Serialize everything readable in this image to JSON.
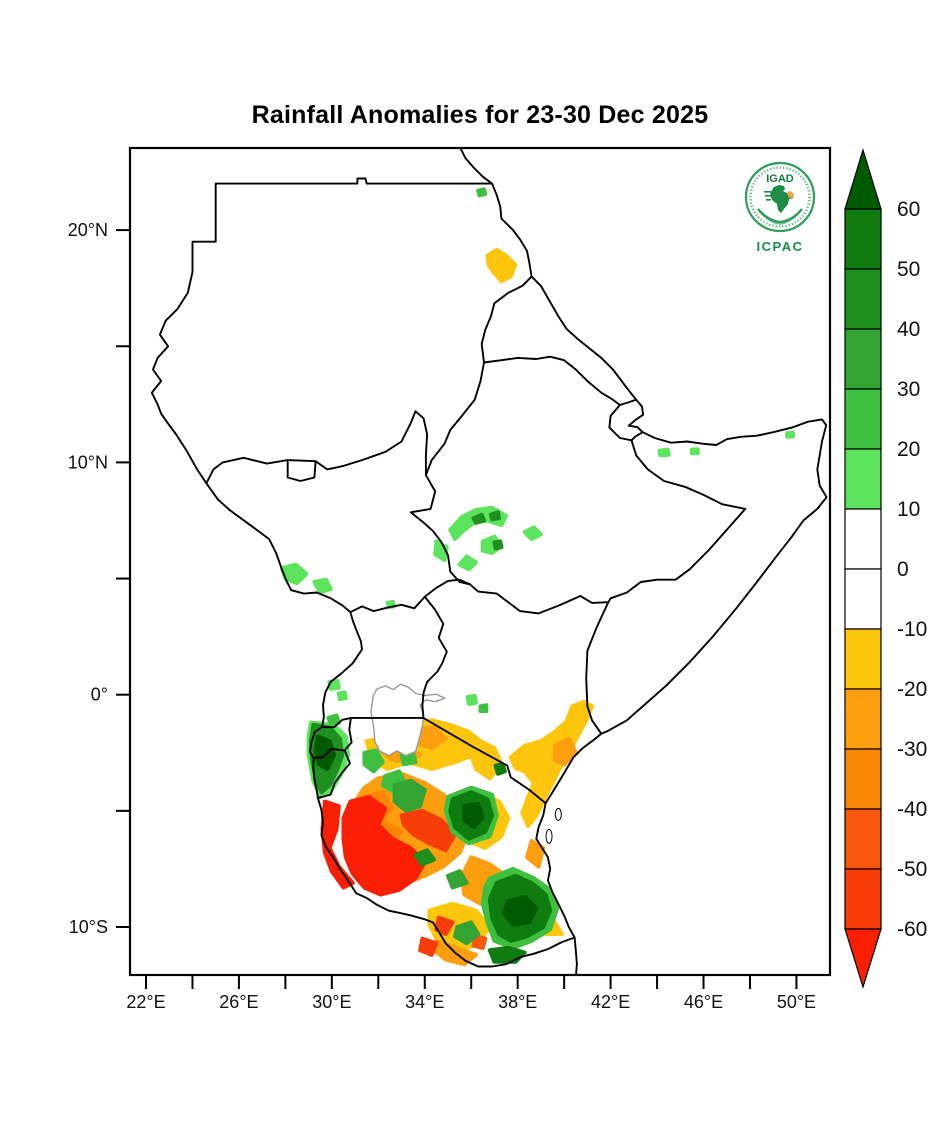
{
  "title": "Rainfall Anomalies for 23-30 Dec 2025",
  "axes": {
    "y_axis": {
      "labels": [
        {
          "text": "20°N",
          "value": 20
        },
        {
          "text": "10°N",
          "value": 10
        },
        {
          "text": "0°",
          "value": 0
        },
        {
          "text": "10°S",
          "value": -10
        }
      ],
      "minor_ticks": [
        15,
        5,
        -5
      ]
    },
    "x_axis": {
      "labels": [
        {
          "text": "22°E",
          "value": 22
        },
        {
          "text": "26°E",
          "value": 26
        },
        {
          "text": "30°E",
          "value": 30
        },
        {
          "text": "34°E",
          "value": 34
        },
        {
          "text": "38°E",
          "value": 38
        },
        {
          "text": "42°E",
          "value": 42
        },
        {
          "text": "46°E",
          "value": 46
        },
        {
          "text": "50°E",
          "value": 50
        }
      ],
      "minor_ticks": [
        24,
        28,
        32,
        36,
        40,
        44,
        48
      ]
    }
  },
  "palette": {
    "green_60": "#005A00",
    "green_50": "#0E7C0E",
    "green_40": "#1F8F1F",
    "green_30": "#33A433",
    "green_20": "#3FBF3F",
    "green_10": "#5CE55C",
    "white": "#FFFFFF",
    "gold": "#FDC50C",
    "orange_20": "#FD9E0E",
    "orange_30": "#FB8505",
    "orange_40": "#F8560A",
    "red_50": "#F63D08",
    "red_60": "#FA1E02"
  },
  "colorbar": {
    "tick_labels": [
      "60",
      "50",
      "40",
      "30",
      "20",
      "10",
      "0",
      "-10",
      "-20",
      "-30",
      "-40",
      "-50",
      "-60"
    ],
    "top_arrow_color_key": "green_60",
    "bottom_arrow_color_key": "red_60",
    "segment_color_keys": [
      "green_50",
      "green_40",
      "green_30",
      "green_20",
      "green_10",
      "white",
      "white",
      "gold",
      "orange_20",
      "orange_30",
      "orange_40",
      "red_50"
    ]
  },
  "logo": {
    "igad_label": "IGAD",
    "icpac_label": "ICPAC",
    "green": "#13914a",
    "orange": "#F2A93B"
  },
  "chart_data": {
    "type": "heatmap",
    "title": "Rainfall Anomalies for 23-30 Dec 2025",
    "colorbar_values": [
      60,
      50,
      40,
      30,
      20,
      10,
      0,
      -10,
      -20,
      -30,
      -40,
      -50,
      -60
    ],
    "x_ticks": [
      "22°E",
      "26°E",
      "30°E",
      "34°E",
      "38°E",
      "42°E",
      "46°E",
      "50°E"
    ],
    "y_ticks": [
      "20°N",
      "10°N",
      "0°",
      "10°S"
    ],
    "legend_position": "right",
    "regions_depicted": [
      {
        "area": "southwestern and central Tanzania",
        "anomaly": "-40 to below -60"
      },
      {
        "area": "northern Tanzania and Kenyan coast strip",
        "anomaly": "-10 to -30"
      },
      {
        "area": "Rwanda, Burundi and southeastern Tanzania",
        "anomaly": "+20 to above +50"
      },
      {
        "area": "western Ethiopia and southwestern South Sudan",
        "anomaly": "+10 to +30"
      },
      {
        "area": "Sudan Red Sea coast patch",
        "anomaly": "-10 to -20"
      },
      {
        "area": "rest of domain (Sudan, Ethiopia, Somalia, most of Kenya, Uganda)",
        "anomaly": "-10 to +10"
      }
    ]
  }
}
